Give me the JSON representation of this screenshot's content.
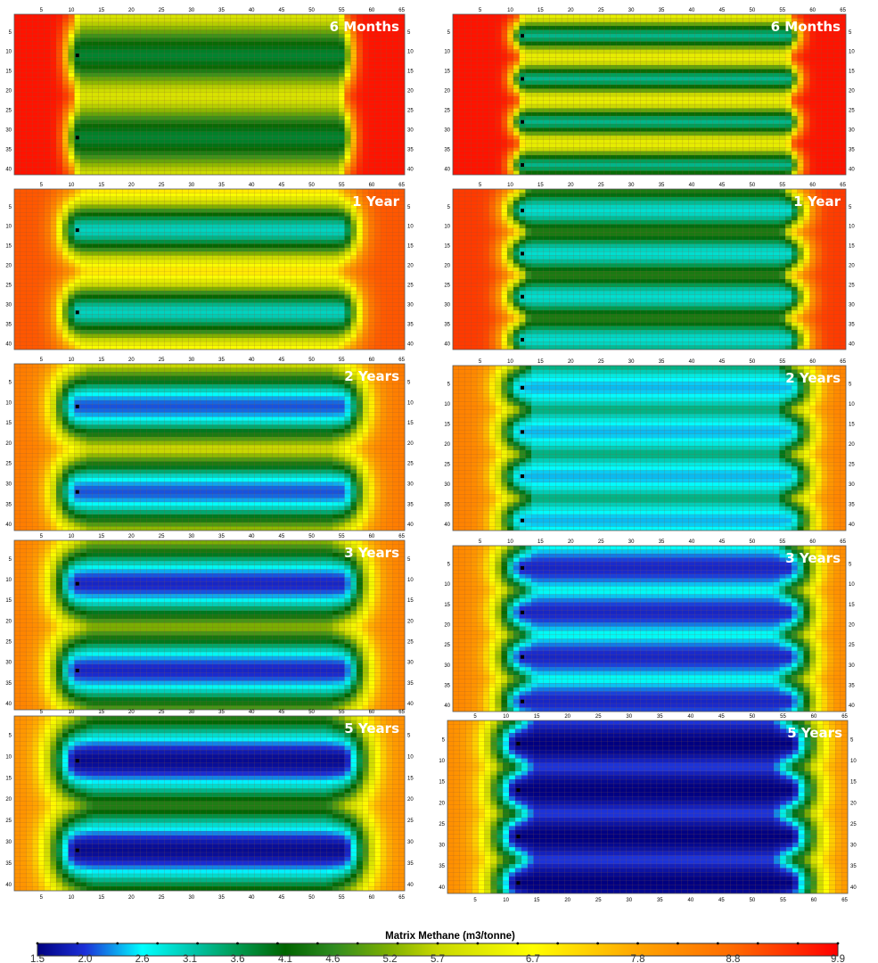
{
  "chart_data": {
    "type": "heatmap",
    "grid": {
      "x_range": [
        1,
        65
      ],
      "y_range": [
        1,
        41
      ]
    },
    "x_ticks": [
      5,
      10,
      15,
      20,
      25,
      30,
      35,
      40,
      45,
      50,
      55,
      60,
      65
    ],
    "y_ticks": [
      5,
      10,
      15,
      20,
      25,
      30,
      35,
      40
    ],
    "colorbar": {
      "title": "Matrix Methane (m3/tonne)",
      "range": [
        1.5,
        9.9
      ],
      "tick_labels": [
        "1.5",
        "2.0",
        "2.6",
        "3.1",
        "3.6",
        "4.1",
        "4.6",
        "5.2",
        "5.7",
        "6.7",
        "7.8",
        "8.8",
        "9.9"
      ],
      "stops": [
        {
          "value": 1.5,
          "color": "#000080"
        },
        {
          "value": 2.0,
          "color": "#1c30d8"
        },
        {
          "value": 2.6,
          "color": "#00ffff"
        },
        {
          "value": 3.1,
          "color": "#00c8b0"
        },
        {
          "value": 3.6,
          "color": "#009a50"
        },
        {
          "value": 4.1,
          "color": "#006400"
        },
        {
          "value": 4.6,
          "color": "#2e8b20"
        },
        {
          "value": 5.2,
          "color": "#7fb000"
        },
        {
          "value": 5.7,
          "color": "#c8d800"
        },
        {
          "value": 6.7,
          "color": "#ffff00"
        },
        {
          "value": 7.8,
          "color": "#ffa500"
        },
        {
          "value": 8.8,
          "color": "#ff6a00"
        },
        {
          "value": 9.9,
          "color": "#ff0000"
        }
      ]
    },
    "panels": [
      {
        "title": "6 Months",
        "wells_y": [
          11,
          32
        ],
        "well_x": [
          11,
          55
        ],
        "center_value": 3.8,
        "background_value": 9.7,
        "trough_value": 6.5,
        "influence": 5.5,
        "end_spread": 1.4
      },
      {
        "title": "6 Months",
        "wells_y": [
          6,
          17,
          28,
          39
        ],
        "well_x": [
          12,
          56
        ],
        "center_value": 3.3,
        "background_value": 9.7,
        "trough_value": 6.8,
        "influence": 2.6,
        "end_spread": 1.4
      },
      {
        "title": "1 Year",
        "wells_y": [
          11,
          32
        ],
        "well_x": [
          11,
          55
        ],
        "center_value": 3.0,
        "background_value": 9.0,
        "trough_value": 7.9,
        "influence": 5.5,
        "end_spread": 2.2
      },
      {
        "title": "1 Year",
        "wells_y": [
          6,
          17,
          28,
          39
        ],
        "well_x": [
          12,
          56
        ],
        "center_value": 2.9,
        "background_value": 9.3,
        "trough_value": 5.3,
        "influence": 3.6,
        "end_spread": 2.2
      },
      {
        "title": "2 Years",
        "wells_y": [
          11,
          32
        ],
        "well_x": [
          11,
          55
        ],
        "center_value": 2.1,
        "background_value": 8.5,
        "trough_value": 7.3,
        "influence": 6.5,
        "end_spread": 3.0
      },
      {
        "title": "2 Years",
        "wells_y": [
          6,
          17,
          28,
          39
        ],
        "well_x": [
          12,
          56
        ],
        "center_value": 2.4,
        "background_value": 8.4,
        "trough_value": 4.4,
        "influence": 4.5,
        "end_spread": 3.0
      },
      {
        "title": "3 Years",
        "wells_y": [
          11,
          32
        ],
        "well_x": [
          11,
          55
        ],
        "center_value": 1.9,
        "background_value": 8.4,
        "trough_value": 7.0,
        "influence": 7.0,
        "end_spread": 3.2
      },
      {
        "title": "3 Years",
        "wells_y": [
          6,
          17,
          28,
          39
        ],
        "well_x": [
          12,
          56
        ],
        "center_value": 1.9,
        "background_value": 8.3,
        "trough_value": 3.8,
        "influence": 5.0,
        "end_spread": 3.2
      },
      {
        "title": "5 Years",
        "wells_y": [
          11,
          32
        ],
        "well_x": [
          11,
          55
        ],
        "center_value": 1.6,
        "background_value": 8.2,
        "trough_value": 6.4,
        "influence": 7.5,
        "end_spread": 3.5
      },
      {
        "title": "5 Years",
        "wells_y": [
          6,
          17,
          28,
          39
        ],
        "well_x": [
          12,
          56
        ],
        "center_value": 1.5,
        "background_value": 8.2,
        "trough_value": 3.0,
        "influence": 5.5,
        "end_spread": 3.5
      }
    ]
  }
}
